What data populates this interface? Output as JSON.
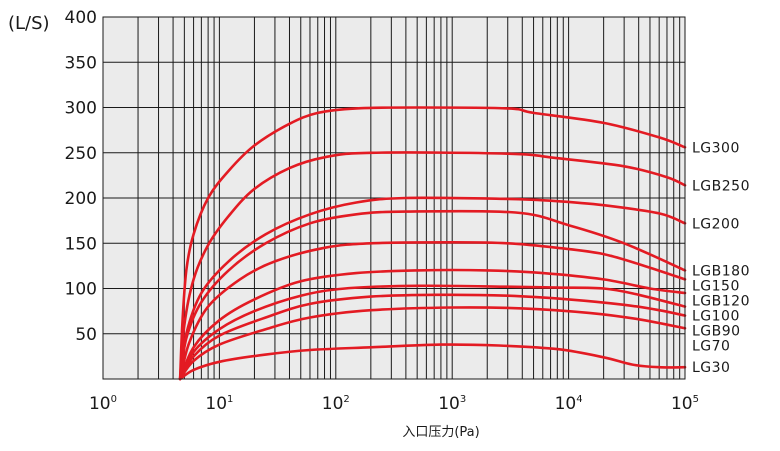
{
  "chart_data": {
    "type": "line",
    "x_scale": "log",
    "xlim": [
      1,
      100000
    ],
    "ylim": [
      0,
      400
    ],
    "grid": true,
    "y_unit": "(L/S)",
    "xlabel": "入口压力(Pa)",
    "x_ticks": [
      {
        "base": "10",
        "exp": "0"
      },
      {
        "base": "10",
        "exp": "1"
      },
      {
        "base": "10",
        "exp": "2"
      },
      {
        "base": "10",
        "exp": "3"
      },
      {
        "base": "10",
        "exp": "4"
      },
      {
        "base": "10",
        "exp": "5"
      }
    ],
    "y_ticks": [
      "50",
      "100",
      "150",
      "200",
      "250",
      "300",
      "350",
      "400"
    ],
    "colors": {
      "line": "#e31b23",
      "grid": "#1a1a1a",
      "plot_bg": "#ebebeb"
    },
    "series": [
      {
        "name": "LG300",
        "points": [
          [
            4.6,
            0
          ],
          [
            4.8,
            60
          ],
          [
            5.2,
            120
          ],
          [
            6,
            160
          ],
          [
            8,
            200
          ],
          [
            12,
            230
          ],
          [
            20,
            258
          ],
          [
            40,
            282
          ],
          [
            70,
            294
          ],
          [
            150,
            299
          ],
          [
            500,
            300
          ],
          [
            3000,
            299
          ],
          [
            5000,
            294
          ],
          [
            20000,
            283
          ],
          [
            60000,
            267
          ],
          [
            100000,
            256
          ]
        ]
      },
      {
        "name": "LGB250",
        "points": [
          [
            4.6,
            0
          ],
          [
            5,
            60
          ],
          [
            6,
            110
          ],
          [
            8,
            148
          ],
          [
            12,
            180
          ],
          [
            20,
            210
          ],
          [
            40,
            233
          ],
          [
            80,
            245
          ],
          [
            200,
            250
          ],
          [
            3000,
            249
          ],
          [
            8000,
            244
          ],
          [
            30000,
            235
          ],
          [
            70000,
            223
          ],
          [
            100000,
            214
          ]
        ]
      },
      {
        "name": "LG200",
        "points": [
          [
            4.6,
            0
          ],
          [
            5.2,
            50
          ],
          [
            7,
            95
          ],
          [
            12,
            130
          ],
          [
            25,
            160
          ],
          [
            60,
            182
          ],
          [
            150,
            195
          ],
          [
            400,
            200
          ],
          [
            3000,
            199
          ],
          [
            7000,
            197
          ],
          [
            20000,
            192
          ],
          [
            60000,
            183
          ],
          [
            100000,
            172
          ]
        ]
      },
      {
        "name": "LGB180",
        "points": [
          [
            4.6,
            0
          ],
          [
            5.2,
            45
          ],
          [
            7,
            85
          ],
          [
            12,
            120
          ],
          [
            25,
            150
          ],
          [
            60,
            172
          ],
          [
            150,
            182
          ],
          [
            400,
            185
          ],
          [
            3500,
            184
          ],
          [
            10000,
            170
          ],
          [
            30000,
            150
          ],
          [
            100000,
            120
          ]
        ]
      },
      {
        "name": "LG150",
        "points": [
          [
            4.6,
            0
          ],
          [
            5.5,
            40
          ],
          [
            8,
            80
          ],
          [
            15,
            110
          ],
          [
            30,
            130
          ],
          [
            80,
            145
          ],
          [
            200,
            150
          ],
          [
            1000,
            151
          ],
          [
            3000,
            150
          ],
          [
            8000,
            145
          ],
          [
            20000,
            138
          ],
          [
            50000,
            123
          ],
          [
            100000,
            110
          ]
        ]
      },
      {
        "name": "LGB120",
        "points": [
          [
            4.6,
            0
          ],
          [
            6,
            35
          ],
          [
            10,
            65
          ],
          [
            20,
            88
          ],
          [
            50,
            108
          ],
          [
            150,
            117
          ],
          [
            500,
            120
          ],
          [
            2000,
            120
          ],
          [
            6000,
            117
          ],
          [
            20000,
            110
          ],
          [
            50000,
            100
          ],
          [
            100000,
            95
          ]
        ]
      },
      {
        "name": "LG100",
        "points": [
          [
            4.6,
            0
          ],
          [
            6,
            30
          ],
          [
            10,
            55
          ],
          [
            20,
            75
          ],
          [
            50,
            92
          ],
          [
            120,
            100
          ],
          [
            500,
            103
          ],
          [
            3000,
            102
          ],
          [
            8000,
            101
          ],
          [
            20000,
            100
          ],
          [
            40000,
            93
          ],
          [
            100000,
            80
          ]
        ]
      },
      {
        "name": "LGB90",
        "points": [
          [
            4.6,
            0
          ],
          [
            6,
            25
          ],
          [
            10,
            48
          ],
          [
            25,
            68
          ],
          [
            60,
            83
          ],
          [
            200,
            91
          ],
          [
            800,
            93
          ],
          [
            3000,
            92
          ],
          [
            10000,
            88
          ],
          [
            30000,
            82
          ],
          [
            60000,
            76
          ],
          [
            100000,
            70
          ]
        ]
      },
      {
        "name": "LG70",
        "points": [
          [
            4.6,
            0
          ],
          [
            6,
            20
          ],
          [
            10,
            38
          ],
          [
            25,
            55
          ],
          [
            60,
            68
          ],
          [
            200,
            76
          ],
          [
            1000,
            79
          ],
          [
            4000,
            78
          ],
          [
            15000,
            73
          ],
          [
            40000,
            66
          ],
          [
            100000,
            56
          ]
        ]
      },
      {
        "name": "LG30",
        "points": [
          [
            4.6,
            0
          ],
          [
            6,
            10
          ],
          [
            10,
            19
          ],
          [
            25,
            27
          ],
          [
            60,
            32
          ],
          [
            200,
            35
          ],
          [
            800,
            38
          ],
          [
            2500,
            37
          ],
          [
            8000,
            33
          ],
          [
            20000,
            24
          ],
          [
            35000,
            16
          ],
          [
            60000,
            13
          ],
          [
            100000,
            13
          ]
        ]
      }
    ]
  }
}
